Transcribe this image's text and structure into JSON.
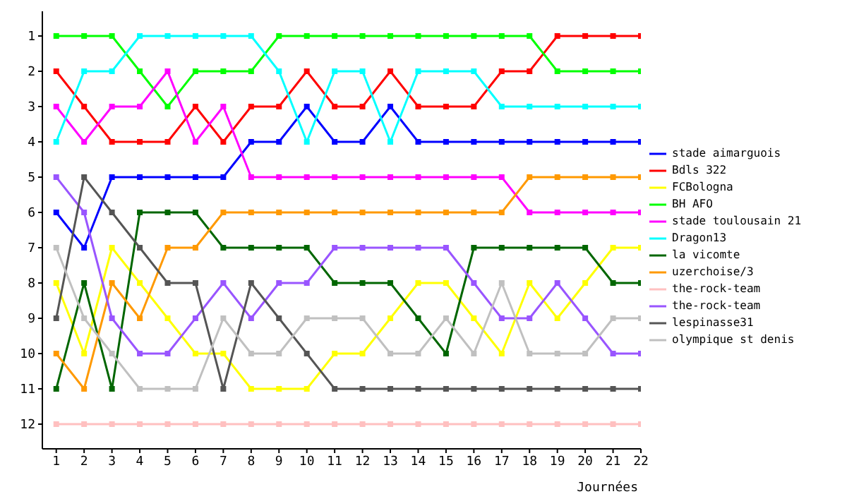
{
  "chart_data": {
    "type": "line",
    "xlabel": "Journées",
    "x": [
      1,
      2,
      3,
      4,
      5,
      6,
      7,
      8,
      9,
      10,
      11,
      12,
      13,
      14,
      15,
      16,
      17,
      18,
      19,
      20,
      21,
      22
    ],
    "xlim": [
      0.5,
      22
    ],
    "xticks": [
      1,
      2,
      3,
      4,
      5,
      6,
      7,
      8,
      9,
      10,
      11,
      12,
      13,
      14,
      15,
      16,
      17,
      18,
      19,
      20,
      21,
      22
    ],
    "ylim": [
      12.7,
      0.3
    ],
    "yticks": [
      1,
      2,
      3,
      4,
      5,
      6,
      7,
      8,
      9,
      10,
      11,
      12
    ],
    "grid": false,
    "legend": "right",
    "marker": "square",
    "line_style": "solid",
    "series": [
      {
        "name": "stade aimarguois",
        "color": "#0000ff",
        "values": [
          6,
          7,
          5,
          5,
          5,
          5,
          5,
          4,
          4,
          3,
          4,
          4,
          3,
          4,
          4,
          4,
          4,
          4,
          4,
          4,
          4,
          4
        ]
      },
      {
        "name": "Bdls 322",
        "color": "#ff0000",
        "values": [
          2,
          3,
          4,
          4,
          4,
          3,
          4,
          3,
          3,
          2,
          3,
          3,
          2,
          3,
          3,
          3,
          2,
          2,
          1,
          1,
          1,
          1
        ]
      },
      {
        "name": "FCBologna",
        "color": "#ffff00",
        "values": [
          8,
          10,
          7,
          8,
          9,
          10,
          10,
          11,
          11,
          11,
          10,
          10,
          9,
          8,
          8,
          9,
          10,
          8,
          9,
          8,
          7,
          7
        ]
      },
      {
        "name": "BH AFO",
        "color": "#00ff00",
        "values": [
          1,
          1,
          1,
          2,
          3,
          2,
          2,
          2,
          1,
          1,
          1,
          1,
          1,
          1,
          1,
          1,
          1,
          1,
          2,
          2,
          2,
          2
        ]
      },
      {
        "name": "stade toulousain 21",
        "color": "#ff00ff",
        "values": [
          3,
          4,
          3,
          3,
          2,
          4,
          3,
          5,
          5,
          5,
          5,
          5,
          5,
          5,
          5,
          5,
          5,
          6,
          6,
          6,
          6,
          6
        ]
      },
      {
        "name": "Dragon13",
        "color": "#00ffff",
        "values": [
          4,
          2,
          2,
          1,
          1,
          1,
          1,
          1,
          2,
          4,
          2,
          2,
          4,
          2,
          2,
          2,
          3,
          3,
          3,
          3,
          3,
          3
        ]
      },
      {
        "name": "la vicomte",
        "color": "#006600",
        "values": [
          11,
          8,
          11,
          6,
          6,
          6,
          7,
          7,
          7,
          7,
          8,
          8,
          8,
          9,
          10,
          7,
          7,
          7,
          7,
          7,
          8,
          8
        ]
      },
      {
        "name": "uzerchoise/3",
        "color": "#ff9900",
        "values": [
          10,
          11,
          8,
          9,
          7,
          7,
          6,
          6,
          6,
          6,
          6,
          6,
          6,
          6,
          6,
          6,
          6,
          5,
          5,
          5,
          5,
          5
        ]
      },
      {
        "name": "the-rock-team",
        "color": "#ffc0c0",
        "values": [
          12,
          12,
          12,
          12,
          12,
          12,
          12,
          12,
          12,
          12,
          12,
          12,
          12,
          12,
          12,
          12,
          12,
          12,
          12,
          12,
          12,
          12
        ]
      },
      {
        "name": "the-rock-team",
        "color": "#9955ff",
        "values": [
          5,
          6,
          9,
          10,
          10,
          9,
          8,
          9,
          8,
          8,
          7,
          7,
          7,
          7,
          7,
          8,
          9,
          9,
          8,
          9,
          10,
          10
        ]
      },
      {
        "name": "lespinasse31",
        "color": "#555555",
        "values": [
          9,
          5,
          6,
          7,
          8,
          8,
          11,
          8,
          9,
          10,
          11,
          11,
          11,
          11,
          11,
          11,
          11,
          11,
          11,
          11,
          11,
          11
        ]
      },
      {
        "name": "olympique st denis",
        "color": "#c0c0c0",
        "values": [
          7,
          9,
          10,
          11,
          11,
          11,
          9,
          10,
          10,
          9,
          9,
          9,
          10,
          10,
          9,
          10,
          8,
          10,
          10,
          10,
          9,
          9
        ]
      }
    ]
  }
}
